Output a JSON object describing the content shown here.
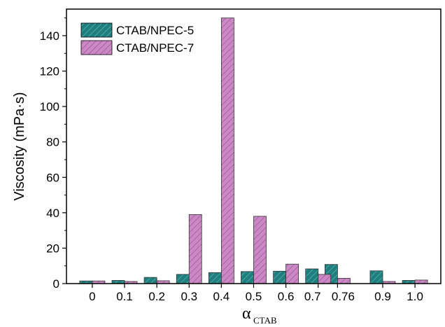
{
  "chart_data": {
    "type": "bar",
    "categories": [
      "0",
      "0.1",
      "0.2",
      "0.3",
      "0.4",
      "0.5",
      "0.6",
      "0.7",
      "0.76",
      "0.9",
      "1.0"
    ],
    "x_positions": [
      0,
      0.1,
      0.2,
      0.3,
      0.4,
      0.5,
      0.6,
      0.7,
      0.76,
      0.9,
      1.0
    ],
    "series": [
      {
        "name": "CTAB/NPEC-5",
        "values": [
          1.5,
          1.8,
          3.5,
          5.2,
          6.2,
          6.8,
          7.0,
          8.3,
          10.8,
          7.2,
          1.8
        ],
        "color": "#1f7f7f",
        "hatch": "diagonal"
      },
      {
        "name": "CTAB/NPEC-7",
        "values": [
          1.5,
          1.2,
          1.6,
          39.0,
          150.0,
          38.0,
          11.0,
          5.2,
          3.0,
          1.2,
          2.0
        ],
        "color": "#cc88c4",
        "hatch": "diagonal"
      }
    ],
    "ylabel": "Viscosity (mPa·s)",
    "xlabel_main": "α",
    "xlabel_sub": "CTAB",
    "ylim": [
      0,
      155
    ],
    "yticks": [
      0,
      20,
      40,
      60,
      80,
      100,
      120,
      140
    ],
    "xlim": [
      -0.08,
      1.08
    ],
    "legend_position": "top-left",
    "grid": false
  }
}
